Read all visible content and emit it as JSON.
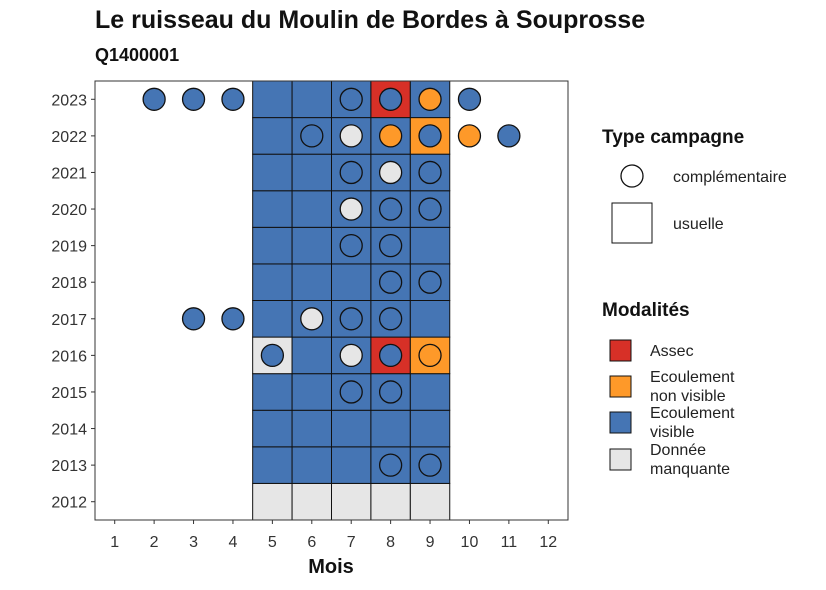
{
  "chart_data": {
    "type": "heatmap",
    "title": "Le ruisseau du Moulin de Bordes à Souprosse",
    "subtitle": "Q1400001",
    "xlabel": "Mois",
    "ylabel": "",
    "x_ticks": [
      "1",
      "2",
      "3",
      "4",
      "5",
      "6",
      "7",
      "8",
      "9",
      "10",
      "11",
      "12"
    ],
    "y_ticks": [
      "2012",
      "2013",
      "2014",
      "2015",
      "2016",
      "2017",
      "2018",
      "2019",
      "2020",
      "2021",
      "2022",
      "2023"
    ],
    "xlim": [
      0.5,
      12.5
    ],
    "ylim": [
      2011.5,
      2023.5
    ],
    "grid": false,
    "colors": {
      "Assec": "#d73027",
      "Ecoulement non visible": "#fe9929",
      "Ecoulement visible": "#4575b4",
      "Donnée manquante": "#e6e6e6"
    },
    "legend": {
      "placement": "right",
      "type_title": "Type campagne",
      "type_entries": [
        {
          "label": "complémentaire",
          "shape": "circle"
        },
        {
          "label": "usuelle",
          "shape": "square"
        }
      ],
      "mod_title": "Modalités",
      "mod_entries": [
        {
          "key": "Assec",
          "lines": [
            "Assec"
          ]
        },
        {
          "key": "Ecoulement non visible",
          "lines": [
            "Ecoulement",
            "non visible"
          ]
        },
        {
          "key": "Ecoulement visible",
          "lines": [
            "Ecoulement",
            "visible"
          ]
        },
        {
          "key": "Donnée manquante",
          "lines": [
            "Donnée",
            "manquante"
          ]
        }
      ]
    },
    "usuelle": [
      {
        "year": 2012,
        "month": 5,
        "value": "Donnée manquante"
      },
      {
        "year": 2012,
        "month": 6,
        "value": "Donnée manquante"
      },
      {
        "year": 2012,
        "month": 7,
        "value": "Donnée manquante"
      },
      {
        "year": 2012,
        "month": 8,
        "value": "Donnée manquante"
      },
      {
        "year": 2012,
        "month": 9,
        "value": "Donnée manquante"
      },
      {
        "year": 2013,
        "month": 5,
        "value": "Ecoulement visible"
      },
      {
        "year": 2013,
        "month": 6,
        "value": "Ecoulement visible"
      },
      {
        "year": 2013,
        "month": 7,
        "value": "Ecoulement visible"
      },
      {
        "year": 2013,
        "month": 8,
        "value": "Ecoulement visible"
      },
      {
        "year": 2013,
        "month": 9,
        "value": "Ecoulement visible"
      },
      {
        "year": 2014,
        "month": 5,
        "value": "Ecoulement visible"
      },
      {
        "year": 2014,
        "month": 6,
        "value": "Ecoulement visible"
      },
      {
        "year": 2014,
        "month": 7,
        "value": "Ecoulement visible"
      },
      {
        "year": 2014,
        "month": 8,
        "value": "Ecoulement visible"
      },
      {
        "year": 2014,
        "month": 9,
        "value": "Ecoulement visible"
      },
      {
        "year": 2015,
        "month": 5,
        "value": "Ecoulement visible"
      },
      {
        "year": 2015,
        "month": 6,
        "value": "Ecoulement visible"
      },
      {
        "year": 2015,
        "month": 7,
        "value": "Ecoulement visible"
      },
      {
        "year": 2015,
        "month": 8,
        "value": "Ecoulement visible"
      },
      {
        "year": 2015,
        "month": 9,
        "value": "Ecoulement visible"
      },
      {
        "year": 2016,
        "month": 5,
        "value": "Donnée manquante"
      },
      {
        "year": 2016,
        "month": 6,
        "value": "Ecoulement visible"
      },
      {
        "year": 2016,
        "month": 7,
        "value": "Ecoulement visible"
      },
      {
        "year": 2016,
        "month": 8,
        "value": "Assec"
      },
      {
        "year": 2016,
        "month": 9,
        "value": "Ecoulement non visible"
      },
      {
        "year": 2017,
        "month": 5,
        "value": "Ecoulement visible"
      },
      {
        "year": 2017,
        "month": 6,
        "value": "Ecoulement visible"
      },
      {
        "year": 2017,
        "month": 7,
        "value": "Ecoulement visible"
      },
      {
        "year": 2017,
        "month": 8,
        "value": "Ecoulement visible"
      },
      {
        "year": 2017,
        "month": 9,
        "value": "Ecoulement visible"
      },
      {
        "year": 2018,
        "month": 5,
        "value": "Ecoulement visible"
      },
      {
        "year": 2018,
        "month": 6,
        "value": "Ecoulement visible"
      },
      {
        "year": 2018,
        "month": 7,
        "value": "Ecoulement visible"
      },
      {
        "year": 2018,
        "month": 8,
        "value": "Ecoulement visible"
      },
      {
        "year": 2018,
        "month": 9,
        "value": "Ecoulement visible"
      },
      {
        "year": 2019,
        "month": 5,
        "value": "Ecoulement visible"
      },
      {
        "year": 2019,
        "month": 6,
        "value": "Ecoulement visible"
      },
      {
        "year": 2019,
        "month": 7,
        "value": "Ecoulement visible"
      },
      {
        "year": 2019,
        "month": 8,
        "value": "Ecoulement visible"
      },
      {
        "year": 2019,
        "month": 9,
        "value": "Ecoulement visible"
      },
      {
        "year": 2020,
        "month": 5,
        "value": "Ecoulement visible"
      },
      {
        "year": 2020,
        "month": 6,
        "value": "Ecoulement visible"
      },
      {
        "year": 2020,
        "month": 7,
        "value": "Ecoulement visible"
      },
      {
        "year": 2020,
        "month": 8,
        "value": "Ecoulement visible"
      },
      {
        "year": 2020,
        "month": 9,
        "value": "Ecoulement visible"
      },
      {
        "year": 2021,
        "month": 5,
        "value": "Ecoulement visible"
      },
      {
        "year": 2021,
        "month": 6,
        "value": "Ecoulement visible"
      },
      {
        "year": 2021,
        "month": 7,
        "value": "Ecoulement visible"
      },
      {
        "year": 2021,
        "month": 8,
        "value": "Ecoulement visible"
      },
      {
        "year": 2021,
        "month": 9,
        "value": "Ecoulement visible"
      },
      {
        "year": 2022,
        "month": 5,
        "value": "Ecoulement visible"
      },
      {
        "year": 2022,
        "month": 6,
        "value": "Ecoulement visible"
      },
      {
        "year": 2022,
        "month": 7,
        "value": "Ecoulement visible"
      },
      {
        "year": 2022,
        "month": 8,
        "value": "Ecoulement visible"
      },
      {
        "year": 2022,
        "month": 9,
        "value": "Ecoulement non visible"
      },
      {
        "year": 2023,
        "month": 5,
        "value": "Ecoulement visible"
      },
      {
        "year": 2023,
        "month": 6,
        "value": "Ecoulement visible"
      },
      {
        "year": 2023,
        "month": 7,
        "value": "Ecoulement visible"
      },
      {
        "year": 2023,
        "month": 8,
        "value": "Assec"
      },
      {
        "year": 2023,
        "month": 9,
        "value": "Ecoulement visible"
      }
    ],
    "complementaire": [
      {
        "year": 2013,
        "month": 8,
        "value": "Ecoulement visible"
      },
      {
        "year": 2013,
        "month": 9,
        "value": "Ecoulement visible"
      },
      {
        "year": 2015,
        "month": 7,
        "value": "Ecoulement visible"
      },
      {
        "year": 2015,
        "month": 8,
        "value": "Ecoulement visible"
      },
      {
        "year": 2016,
        "month": 5,
        "value": "Ecoulement visible"
      },
      {
        "year": 2016,
        "month": 7,
        "value": "Donnée manquante"
      },
      {
        "year": 2016,
        "month": 8,
        "value": "Ecoulement visible"
      },
      {
        "year": 2016,
        "month": 9,
        "value": "Ecoulement non visible"
      },
      {
        "year": 2017,
        "month": 3,
        "value": "Ecoulement visible"
      },
      {
        "year": 2017,
        "month": 4,
        "value": "Ecoulement visible"
      },
      {
        "year": 2017,
        "month": 6,
        "value": "Donnée manquante"
      },
      {
        "year": 2017,
        "month": 7,
        "value": "Ecoulement visible"
      },
      {
        "year": 2017,
        "month": 8,
        "value": "Ecoulement visible"
      },
      {
        "year": 2018,
        "month": 8,
        "value": "Ecoulement visible"
      },
      {
        "year": 2018,
        "month": 9,
        "value": "Ecoulement visible"
      },
      {
        "year": 2019,
        "month": 7,
        "value": "Ecoulement visible"
      },
      {
        "year": 2019,
        "month": 8,
        "value": "Ecoulement visible"
      },
      {
        "year": 2020,
        "month": 7,
        "value": "Donnée manquante"
      },
      {
        "year": 2020,
        "month": 8,
        "value": "Ecoulement visible"
      },
      {
        "year": 2020,
        "month": 9,
        "value": "Ecoulement visible"
      },
      {
        "year": 2021,
        "month": 7,
        "value": "Ecoulement visible"
      },
      {
        "year": 2021,
        "month": 8,
        "value": "Donnée manquante"
      },
      {
        "year": 2021,
        "month": 9,
        "value": "Ecoulement visible"
      },
      {
        "year": 2022,
        "month": 6,
        "value": "Ecoulement visible"
      },
      {
        "year": 2022,
        "month": 7,
        "value": "Donnée manquante"
      },
      {
        "year": 2022,
        "month": 8,
        "value": "Ecoulement non visible"
      },
      {
        "year": 2022,
        "month": 9,
        "value": "Ecoulement visible"
      },
      {
        "year": 2022,
        "month": 10,
        "value": "Ecoulement non visible"
      },
      {
        "year": 2022,
        "month": 11,
        "value": "Ecoulement visible"
      },
      {
        "year": 2023,
        "month": 2,
        "value": "Ecoulement visible"
      },
      {
        "year": 2023,
        "month": 3,
        "value": "Ecoulement visible"
      },
      {
        "year": 2023,
        "month": 4,
        "value": "Ecoulement visible"
      },
      {
        "year": 2023,
        "month": 7,
        "value": "Ecoulement visible"
      },
      {
        "year": 2023,
        "month": 8,
        "value": "Ecoulement visible"
      },
      {
        "year": 2023,
        "month": 9,
        "value": "Ecoulement non visible"
      },
      {
        "year": 2023,
        "month": 10,
        "value": "Ecoulement visible"
      }
    ]
  }
}
